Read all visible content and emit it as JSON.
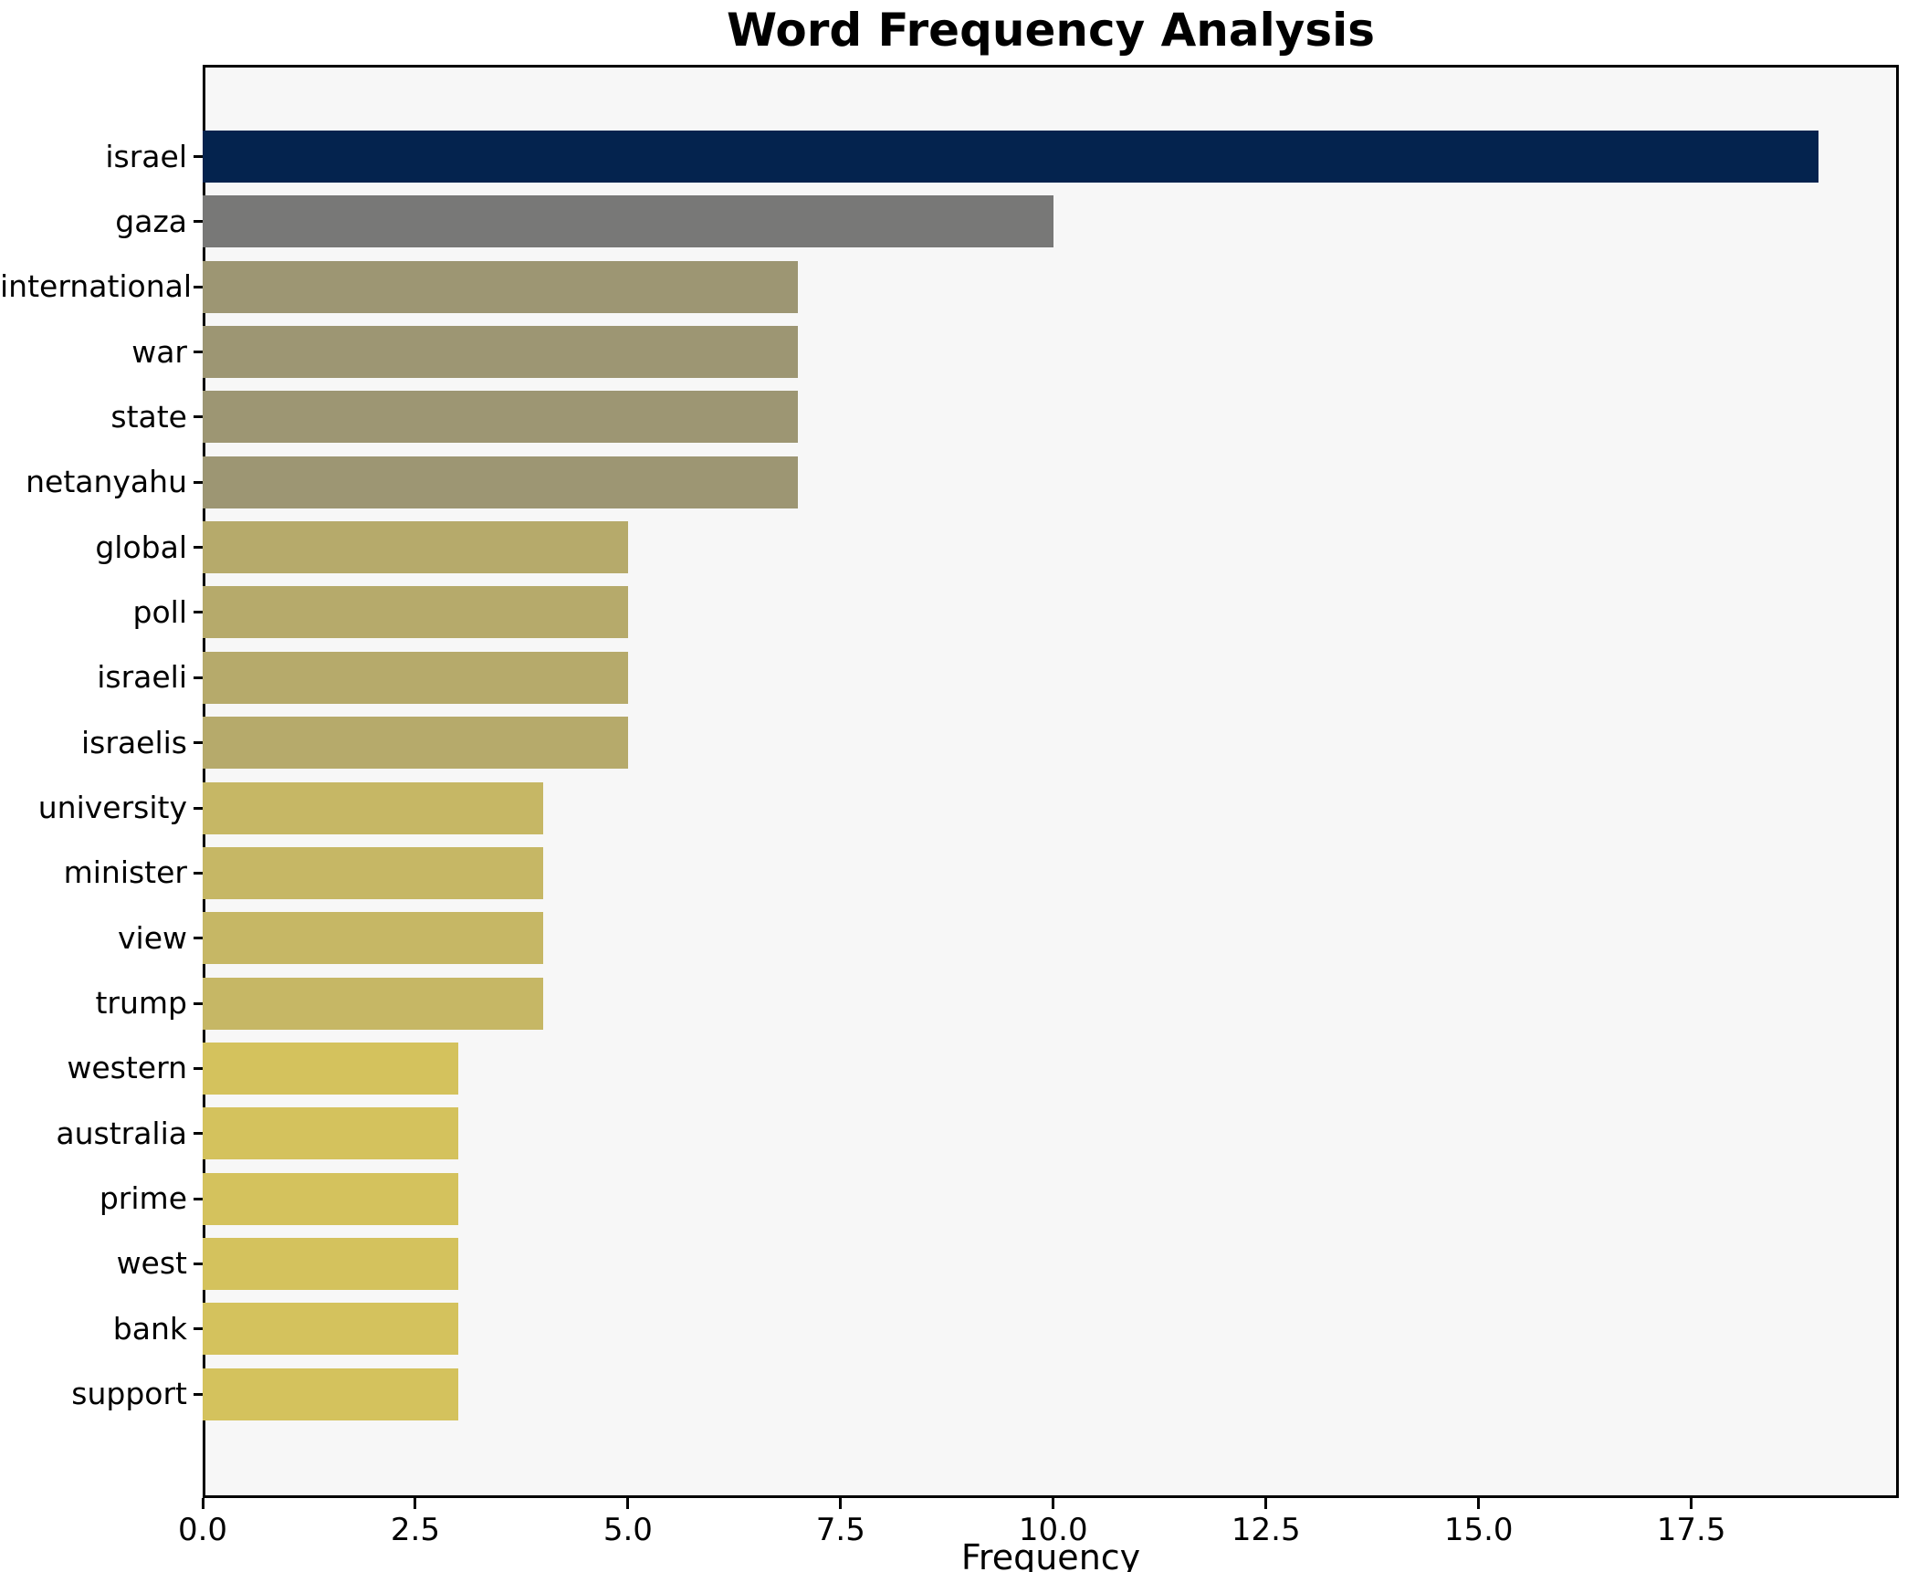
{
  "palette": {
    "page_bg": "#ffffff",
    "plot_bg": "#f7f7f7",
    "axis_color": "#000000",
    "text_color": "#000000",
    "value_colors": {
      "19": "#04234e",
      "10": "#787877",
      "7": "#9d9673",
      "5": "#b6aa6b",
      "4": "#c6b765",
      "3": "#d4c25d"
    }
  },
  "chart_data": {
    "type": "bar",
    "orientation": "horizontal",
    "title": "Word Frequency Analysis",
    "xlabel": "Frequency",
    "ylabel": "",
    "grid": false,
    "legend": false,
    "categories": [
      "israel",
      "gaza",
      "international",
      "war",
      "state",
      "netanyahu",
      "global",
      "poll",
      "israeli",
      "israelis",
      "university",
      "minister",
      "view",
      "trump",
      "western",
      "australia",
      "prime",
      "west",
      "bank",
      "support"
    ],
    "values": [
      19,
      10,
      7,
      7,
      7,
      7,
      5,
      5,
      5,
      5,
      4,
      4,
      4,
      4,
      3,
      3,
      3,
      3,
      3,
      3
    ],
    "bar_colors": [
      "#04234e",
      "#787877",
      "#9d9673",
      "#9d9673",
      "#9d9673",
      "#9d9673",
      "#b6aa6b",
      "#b6aa6b",
      "#b6aa6b",
      "#b6aa6b",
      "#c6b765",
      "#c6b765",
      "#c6b765",
      "#c6b765",
      "#d4c25d",
      "#d4c25d",
      "#d4c25d",
      "#d4c25d",
      "#d4c25d",
      "#d4c25d"
    ],
    "xlim": [
      0,
      19.94
    ],
    "xticks": [
      0.0,
      2.5,
      5.0,
      7.5,
      10.0,
      12.5,
      15.0,
      17.5
    ],
    "xtick_labels": [
      "0.0",
      "2.5",
      "5.0",
      "7.5",
      "10.0",
      "12.5",
      "15.0",
      "17.5"
    ]
  }
}
